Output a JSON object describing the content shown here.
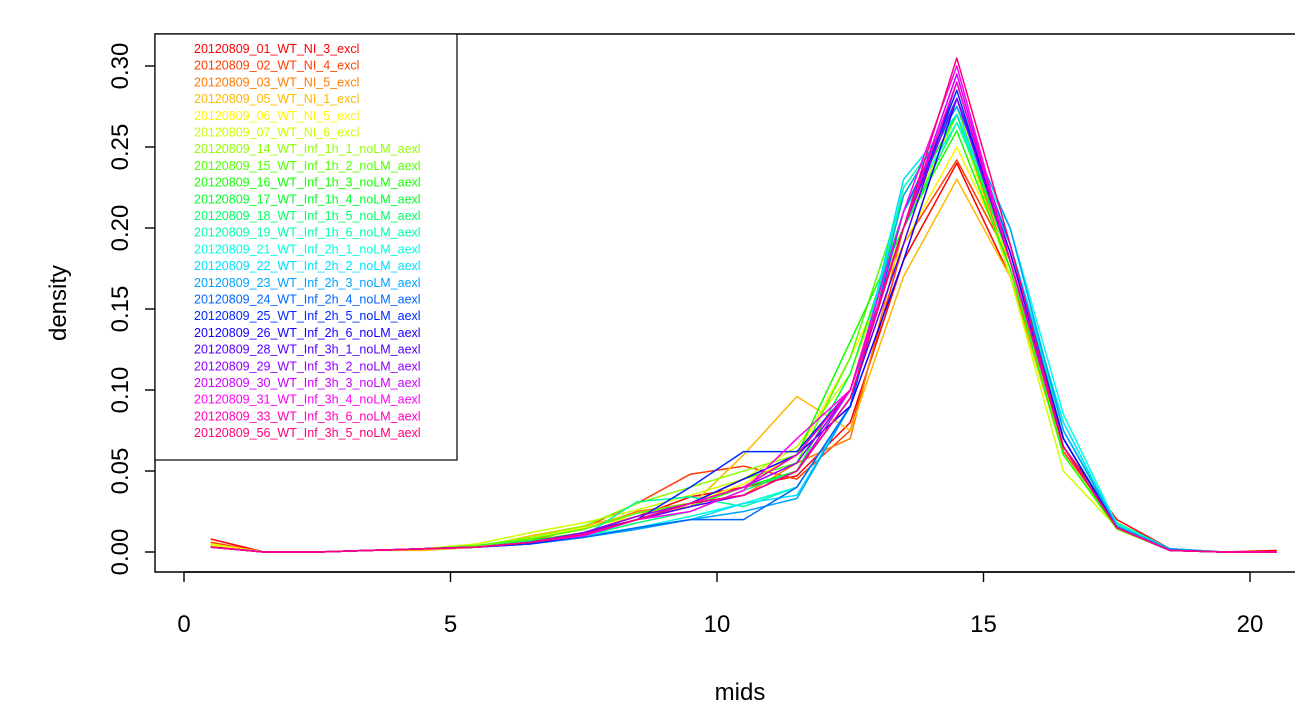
{
  "chart_data": {
    "type": "line",
    "title": "",
    "xlabel": "mids",
    "ylabel": "density",
    "xlim": [
      0,
      21
    ],
    "ylim": [
      0,
      0.31
    ],
    "x_ticks": [
      0,
      5,
      10,
      15,
      20
    ],
    "x_tick_labels": [
      "0",
      "5",
      "10",
      "15",
      "20"
    ],
    "y_ticks": [
      0.0,
      0.05,
      0.1,
      0.15,
      0.2,
      0.25,
      0.3
    ],
    "y_tick_labels": [
      "0.00",
      "0.05",
      "0.10",
      "0.15",
      "0.20",
      "0.25",
      "0.30"
    ],
    "grid": false,
    "legend_position": "top-left",
    "x": [
      0.5,
      1.5,
      2.5,
      3.5,
      4.5,
      5.5,
      6.5,
      7.5,
      8.5,
      9.5,
      10.5,
      11.5,
      12.5,
      13.5,
      14.5,
      15.5,
      16.5,
      17.5,
      18.5,
      19.5,
      20.5
    ],
    "series": [
      {
        "name": "20120809_01_WT_NI_3_excl",
        "color": "#FF0000",
        "values": [
          0.008,
          0.0,
          0.0,
          0.001,
          0.002,
          0.004,
          0.006,
          0.012,
          0.022,
          0.034,
          0.04,
          0.047,
          0.08,
          0.18,
          0.24,
          0.17,
          0.065,
          0.02,
          0.002,
          0.0,
          0.001
        ]
      },
      {
        "name": "20120809_02_WT_NI_4_excl",
        "color": "#FF3D00",
        "values": [
          0.006,
          0.0,
          0.0,
          0.001,
          0.002,
          0.003,
          0.007,
          0.015,
          0.03,
          0.048,
          0.053,
          0.045,
          0.075,
          0.19,
          0.242,
          0.18,
          0.062,
          0.018,
          0.001,
          0.0,
          0.0
        ]
      },
      {
        "name": "20120809_03_WT_NI_5_excl",
        "color": "#FF7A00",
        "values": [
          0.005,
          0.0,
          0.0,
          0.001,
          0.002,
          0.004,
          0.008,
          0.014,
          0.025,
          0.03,
          0.035,
          0.055,
          0.07,
          0.2,
          0.27,
          0.175,
          0.065,
          0.016,
          0.001,
          0.0,
          0.0
        ]
      },
      {
        "name": "20120809_05_WT_NI_1_excl",
        "color": "#FFB800",
        "values": [
          0.004,
          0.0,
          0.0,
          0.001,
          0.001,
          0.003,
          0.01,
          0.016,
          0.024,
          0.028,
          0.06,
          0.096,
          0.075,
          0.17,
          0.23,
          0.17,
          0.06,
          0.016,
          0.001,
          0.0,
          0.0
        ]
      },
      {
        "name": "20120809_06_WT_NI_5_excl",
        "color": "#FFF500",
        "values": [
          0.005,
          0.0,
          0.0,
          0.001,
          0.002,
          0.004,
          0.008,
          0.015,
          0.022,
          0.03,
          0.042,
          0.06,
          0.12,
          0.19,
          0.25,
          0.18,
          0.06,
          0.016,
          0.001,
          0.0,
          0.0
        ]
      },
      {
        "name": "20120809_07_WT_NI_6_excl",
        "color": "#CCFF00",
        "values": [
          0.004,
          0.0,
          0.0,
          0.001,
          0.002,
          0.005,
          0.012,
          0.018,
          0.026,
          0.035,
          0.045,
          0.065,
          0.11,
          0.2,
          0.27,
          0.17,
          0.05,
          0.015,
          0.001,
          0.0,
          0.0
        ]
      },
      {
        "name": "20120809_14_WT_Inf_1h_1_noLM_aexl",
        "color": "#8FFF00",
        "values": [
          0.003,
          0.0,
          0.0,
          0.001,
          0.002,
          0.004,
          0.009,
          0.016,
          0.03,
          0.04,
          0.05,
          0.06,
          0.1,
          0.21,
          0.27,
          0.18,
          0.06,
          0.014,
          0.001,
          0.0,
          0.0
        ]
      },
      {
        "name": "20120809_15_WT_Inf_1h_2_noLM_aexl",
        "color": "#52FF00",
        "values": [
          0.003,
          0.0,
          0.0,
          0.001,
          0.002,
          0.004,
          0.008,
          0.014,
          0.024,
          0.03,
          0.045,
          0.055,
          0.12,
          0.22,
          0.275,
          0.18,
          0.065,
          0.015,
          0.001,
          0.0,
          0.0
        ]
      },
      {
        "name": "20120809_16_WT_Inf_1h_3_noLM_aexl",
        "color": "#14FF00",
        "values": [
          0.003,
          0.0,
          0.0,
          0.001,
          0.002,
          0.003,
          0.007,
          0.012,
          0.02,
          0.028,
          0.04,
          0.06,
          0.13,
          0.2,
          0.26,
          0.175,
          0.06,
          0.015,
          0.001,
          0.0,
          0.0
        ]
      },
      {
        "name": "20120809_17_WT_Inf_1h_4_noLM_aexl",
        "color": "#00FF29",
        "values": [
          0.003,
          0.0,
          0.0,
          0.001,
          0.002,
          0.003,
          0.006,
          0.011,
          0.02,
          0.03,
          0.04,
          0.05,
          0.11,
          0.21,
          0.27,
          0.18,
          0.065,
          0.016,
          0.001,
          0.0,
          0.0
        ]
      },
      {
        "name": "20120809_18_WT_Inf_1h_5_noLM_aexl",
        "color": "#00FF66",
        "values": [
          0.003,
          0.0,
          0.0,
          0.001,
          0.002,
          0.003,
          0.007,
          0.01,
          0.018,
          0.025,
          0.038,
          0.05,
          0.1,
          0.2,
          0.265,
          0.19,
          0.07,
          0.016,
          0.002,
          0.0,
          0.0
        ]
      },
      {
        "name": "20120809_19_WT_Inf_1h_6_noLM_aexl",
        "color": "#00FFA3",
        "values": [
          0.003,
          0.0,
          0.0,
          0.001,
          0.002,
          0.003,
          0.006,
          0.01,
          0.031,
          0.034,
          0.028,
          0.04,
          0.09,
          0.225,
          0.27,
          0.19,
          0.075,
          0.018,
          0.002,
          0.0,
          0.0
        ]
      },
      {
        "name": "20120809_21_WT_Inf_2h_1_noLM_aexl",
        "color": "#00FFE0",
        "values": [
          0.003,
          0.0,
          0.0,
          0.001,
          0.002,
          0.003,
          0.006,
          0.01,
          0.015,
          0.022,
          0.03,
          0.04,
          0.09,
          0.21,
          0.265,
          0.2,
          0.085,
          0.017,
          0.002,
          0.0,
          0.0
        ]
      },
      {
        "name": "20120809_22_WT_Inf_2h_2_noLM_aexl",
        "color": "#00E0FF",
        "values": [
          0.003,
          0.0,
          0.0,
          0.001,
          0.002,
          0.003,
          0.005,
          0.009,
          0.015,
          0.02,
          0.03,
          0.035,
          0.09,
          0.23,
          0.27,
          0.19,
          0.08,
          0.016,
          0.002,
          0.0,
          0.0
        ]
      },
      {
        "name": "20120809_23_WT_Inf_2h_3_noLM_aexl",
        "color": "#00A3FF",
        "values": [
          0.003,
          0.0,
          0.0,
          0.001,
          0.002,
          0.003,
          0.005,
          0.009,
          0.014,
          0.02,
          0.025,
          0.033,
          0.09,
          0.22,
          0.275,
          0.2,
          0.075,
          0.016,
          0.002,
          0.0,
          0.0
        ]
      },
      {
        "name": "20120809_24_WT_Inf_2h_4_noLM_aexl",
        "color": "#0066FF",
        "values": [
          0.003,
          0.0,
          0.0,
          0.001,
          0.002,
          0.003,
          0.005,
          0.009,
          0.015,
          0.02,
          0.02,
          0.04,
          0.09,
          0.21,
          0.28,
          0.19,
          0.07,
          0.015,
          0.001,
          0.0,
          0.0
        ]
      },
      {
        "name": "20120809_25_WT_Inf_2h_5_noLM_aexl",
        "color": "#0029FF",
        "values": [
          0.003,
          0.0,
          0.0,
          0.001,
          0.002,
          0.003,
          0.005,
          0.01,
          0.02,
          0.04,
          0.062,
          0.062,
          0.1,
          0.2,
          0.285,
          0.18,
          0.07,
          0.015,
          0.001,
          0.0,
          0.0
        ]
      },
      {
        "name": "20120809_26_WT_Inf_2h_6_noLM_aexl",
        "color": "#1400FF",
        "values": [
          0.003,
          0.0,
          0.0,
          0.001,
          0.002,
          0.003,
          0.006,
          0.012,
          0.02,
          0.03,
          0.045,
          0.06,
          0.09,
          0.18,
          0.28,
          0.185,
          0.07,
          0.015,
          0.001,
          0.0,
          0.0
        ]
      },
      {
        "name": "20120809_28_WT_Inf_3h_1_noLM_aexl",
        "color": "#5200FF",
        "values": [
          0.003,
          0.0,
          0.0,
          0.001,
          0.002,
          0.003,
          0.006,
          0.011,
          0.02,
          0.028,
          0.035,
          0.05,
          0.095,
          0.19,
          0.29,
          0.18,
          0.065,
          0.015,
          0.001,
          0.0,
          0.0
        ]
      },
      {
        "name": "20120809_29_WT_Inf_3h_2_noLM_aexl",
        "color": "#8F00FF",
        "values": [
          0.003,
          0.0,
          0.0,
          0.001,
          0.002,
          0.003,
          0.006,
          0.012,
          0.022,
          0.03,
          0.04,
          0.055,
          0.1,
          0.2,
          0.28,
          0.18,
          0.065,
          0.015,
          0.001,
          0.0,
          0.0
        ]
      },
      {
        "name": "20120809_30_WT_Inf_3h_3_noLM_aexl",
        "color": "#CC00FF",
        "values": [
          0.003,
          0.0,
          0.0,
          0.001,
          0.002,
          0.003,
          0.006,
          0.011,
          0.02,
          0.03,
          0.035,
          0.05,
          0.1,
          0.2,
          0.295,
          0.18,
          0.065,
          0.015,
          0.001,
          0.0,
          0.0
        ]
      },
      {
        "name": "20120809_31_WT_Inf_3h_4_noLM_aexl",
        "color": "#FF00F5",
        "values": [
          0.003,
          0.0,
          0.0,
          0.001,
          0.002,
          0.003,
          0.006,
          0.01,
          0.02,
          0.025,
          0.038,
          0.07,
          0.1,
          0.21,
          0.3,
          0.18,
          0.065,
          0.015,
          0.001,
          0.0,
          0.0
        ]
      },
      {
        "name": "20120809_33_WT_Inf_3h_6_noLM_aexl",
        "color": "#FF00B8",
        "values": [
          0.003,
          0.0,
          0.0,
          0.001,
          0.002,
          0.003,
          0.006,
          0.011,
          0.02,
          0.03,
          0.04,
          0.06,
          0.1,
          0.2,
          0.29,
          0.18,
          0.065,
          0.015,
          0.001,
          0.0,
          0.0
        ]
      },
      {
        "name": "20120809_56_WT_Inf_3h_5_noLM_aexl",
        "color": "#FF007A",
        "values": [
          0.003,
          0.0,
          0.0,
          0.001,
          0.002,
          0.003,
          0.006,
          0.011,
          0.02,
          0.03,
          0.035,
          0.05,
          0.095,
          0.2,
          0.305,
          0.19,
          0.065,
          0.015,
          0.001,
          0.0,
          0.0
        ]
      }
    ]
  }
}
